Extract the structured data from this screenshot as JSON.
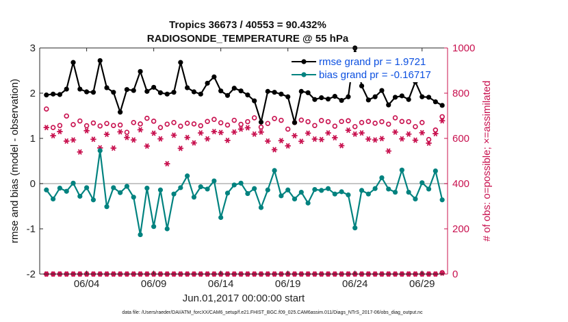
{
  "chart_data": {
    "type": "line",
    "title_line1": "Tropics 36673 / 40553 = 90.432%",
    "title_line2": "RADIOSONDE_TEMPERATURE @ 55 hPa",
    "xlabel": "Jun.01,2017 00:00:00 start",
    "ylabel_left": "rmse and bias (model - observation)",
    "ylabel_right": "# of obs: o=possible; ×=assimilated",
    "footnote": "data file: /Users/raeder/DAI/ATM_forcXX/CAM6_setup/f.e21.FHIST_BGC.f09_025.CAM6assim.011/Diags_NTrS_2017-06/obs_diag_output.nc",
    "xlim": [
      0.5,
      30.9
    ],
    "ylim_left": [
      -2,
      3
    ],
    "ylim_right": [
      0,
      1000
    ],
    "x_tick_positions": [
      4,
      9,
      14,
      19,
      24,
      29
    ],
    "x_tick_labels": [
      "06/04",
      "06/09",
      "06/14",
      "06/19",
      "06/24",
      "06/29"
    ],
    "y_ticks_left": [
      "-2",
      "-1",
      "0",
      "1",
      "2",
      "3"
    ],
    "y_ticks_right": [
      "0",
      "200",
      "400",
      "600",
      "800",
      "1000"
    ],
    "colors": {
      "rmse": "#000000",
      "bias": "#00827f",
      "obs": "#c8104e",
      "legend_text": "#0b4fe0",
      "zero_line": "#b3b3b3"
    },
    "legend": {
      "placement": "top-right",
      "rmse": "rmse grand pr = 1.9721",
      "bias": "bias grand pr = -0.16717"
    },
    "x": [
      1,
      1.5,
      2,
      2.5,
      3,
      3.5,
      4,
      4.5,
      5,
      5.5,
      6,
      6.5,
      7,
      7.5,
      8,
      8.5,
      9,
      9.5,
      10,
      10.5,
      11,
      11.5,
      12,
      12.5,
      13,
      13.5,
      14,
      14.5,
      15,
      15.5,
      16,
      16.5,
      17,
      17.5,
      18,
      18.5,
      19,
      19.5,
      20,
      20.5,
      21,
      21.5,
      22,
      22.5,
      23,
      23.5,
      24,
      24.5,
      25,
      25.5,
      26,
      26.5,
      27,
      27.5,
      28,
      28.5,
      29,
      29.5,
      30,
      30.5
    ],
    "series": [
      {
        "name": "rmse",
        "axis": "left",
        "marker": "filled-circle",
        "line": true,
        "values": [
          1.96,
          1.98,
          1.97,
          2.09,
          2.68,
          2.09,
          2.03,
          2.02,
          2.72,
          2.12,
          2.02,
          1.58,
          2.08,
          2.06,
          2.48,
          2.04,
          2.13,
          2.01,
          1.98,
          2.02,
          2.68,
          2.12,
          2.03,
          1.98,
          2.22,
          2.36,
          2.05,
          1.95,
          2.11,
          2.05,
          1.96,
          1.83,
          1.36,
          2.04,
          2.02,
          1.98,
          1.92,
          1.35,
          2.04,
          2.01,
          1.86,
          1.9,
          1.87,
          1.93,
          1.84,
          1.92,
          3.0,
          2.16,
          1.85,
          1.92,
          2.06,
          1.74,
          1.91,
          1.94,
          1.86,
          2.25,
          1.92,
          1.91,
          1.81,
          1.73
        ]
      },
      {
        "name": "bias",
        "axis": "left",
        "marker": "filled-circle",
        "line": true,
        "values": [
          -0.14,
          -0.34,
          -0.1,
          -0.17,
          0.01,
          -0.28,
          -0.09,
          -0.36,
          0.73,
          -0.51,
          -0.09,
          -0.2,
          -0.06,
          -0.3,
          -1.13,
          -0.1,
          -0.95,
          -0.14,
          -1.0,
          -0.23,
          -0.09,
          0.17,
          -0.3,
          -0.07,
          -0.12,
          0.06,
          -0.75,
          -0.21,
          -0.03,
          0.01,
          -0.22,
          -0.11,
          -0.53,
          -0.14,
          0.29,
          -0.27,
          -0.14,
          -0.34,
          -0.19,
          -0.43,
          -0.13,
          -0.15,
          -0.11,
          -0.23,
          -0.18,
          -0.25,
          -0.98,
          -0.15,
          -0.23,
          -0.11,
          0.13,
          -0.12,
          -0.19,
          0.3,
          -0.19,
          -0.34,
          0.02,
          -0.12,
          0.28,
          -0.36
        ]
      },
      {
        "name": "obs_possible",
        "axis": "right",
        "marker": "open-circle",
        "line": false,
        "values": [
          730,
          648,
          657,
          699,
          661,
          677,
          656,
          668,
          655,
          666,
          657,
          659,
          627,
          670,
          664,
          689,
          676,
          648,
          663,
          670,
          654,
          667,
          664,
          656,
          675,
          684,
          669,
          659,
          680,
          662,
          674,
          691,
          650,
          666,
          688,
          680,
          641,
          670,
          681,
          674,
          657,
          679,
          674,
          654,
          675,
          678,
          652,
          670,
          675,
          667,
          674,
          663,
          691,
          675,
          674,
          652,
          670,
          595,
          637,
          696
        ]
      },
      {
        "name": "obs_assimilated",
        "axis": "right",
        "marker": "asterisk",
        "line": false,
        "values": [
          648,
          612,
          630,
          588,
          593,
          540,
          634,
          596,
          558,
          618,
          557,
          629,
          604,
          593,
          638,
          566,
          623,
          598,
          488,
          614,
          556,
          604,
          580,
          624,
          598,
          630,
          626,
          591,
          628,
          641,
          647,
          619,
          628,
          588,
          550,
          590,
          567,
          612,
          587,
          623,
          597,
          595,
          624,
          603,
          568,
          636,
          619,
          624,
          597,
          593,
          599,
          544,
          628,
          598,
          619,
          592,
          625,
          579,
          621,
          678
        ]
      },
      {
        "name": "obs_possible_low",
        "axis": "right",
        "marker": "open-circle",
        "line": false,
        "values": [
          0,
          0,
          0,
          0,
          0,
          0,
          0,
          0,
          0,
          0,
          0,
          0,
          0,
          0,
          0,
          0,
          0,
          0,
          0,
          0,
          0,
          0,
          0,
          0,
          0,
          0,
          0,
          0,
          0,
          0,
          0,
          0,
          0,
          0,
          0,
          0,
          0,
          0,
          0,
          0,
          0,
          0,
          0,
          0,
          0,
          0,
          0,
          0,
          0,
          0,
          0,
          0,
          0,
          0,
          0,
          0,
          0,
          0,
          0,
          6
        ]
      },
      {
        "name": "obs_assimilated_low",
        "axis": "right",
        "marker": "asterisk",
        "line": false,
        "values": [
          0,
          0,
          0,
          0,
          0,
          0,
          0,
          0,
          0,
          0,
          0,
          0,
          0,
          0,
          0,
          0,
          0,
          0,
          0,
          0,
          0,
          0,
          0,
          0,
          0,
          0,
          0,
          0,
          0,
          0,
          0,
          0,
          0,
          0,
          0,
          0,
          0,
          0,
          0,
          0,
          0,
          0,
          0,
          0,
          0,
          0,
          0,
          0,
          0,
          0,
          0,
          0,
          0,
          0,
          0,
          0,
          0,
          0,
          0,
          4
        ]
      }
    ]
  }
}
